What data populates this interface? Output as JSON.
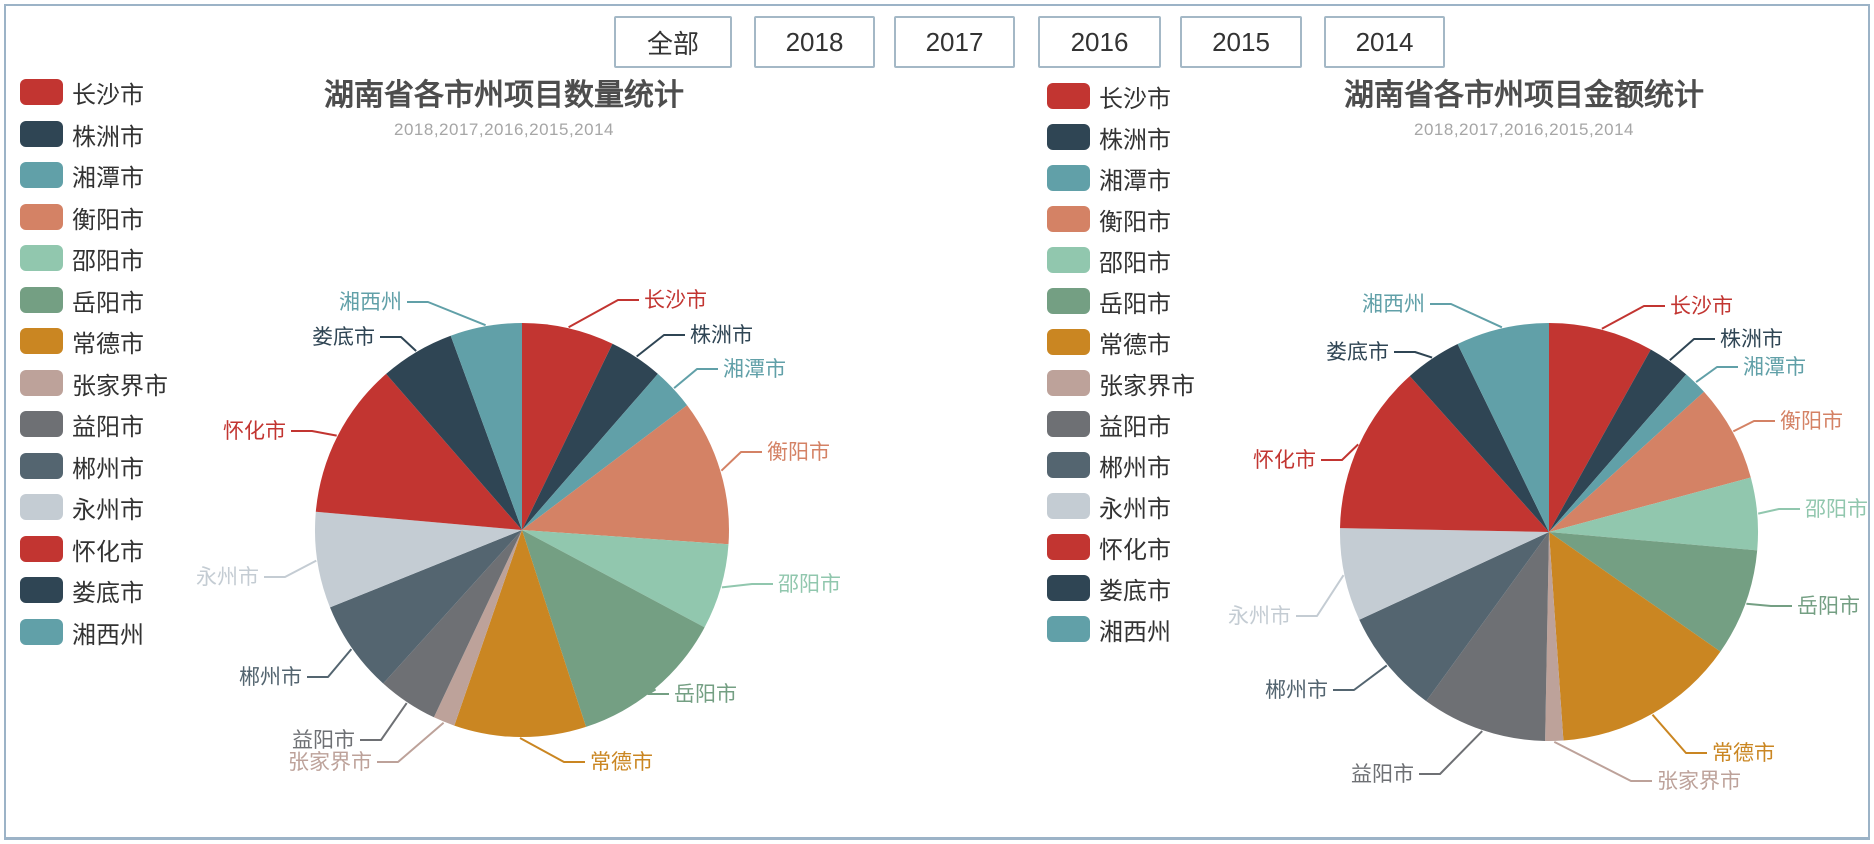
{
  "page": {
    "background": "#ffffff",
    "border_color": "#9cb3c7"
  },
  "filter_bar": {
    "buttons": [
      {
        "label": "全部"
      },
      {
        "label": "2018"
      },
      {
        "label": "2017"
      },
      {
        "label": "2016"
      },
      {
        "label": "2015"
      },
      {
        "label": "2014"
      }
    ]
  },
  "chart_data": [
    {
      "type": "pie",
      "title": "湖南省各市州项目数量统计",
      "subtitle": "2018,2017,2016,2015,2014",
      "legend_position": "left",
      "label_style": "outside labels with leader lines, label text colored like slice",
      "values_unit": "percent, estimated from slice angles (no numbers shown on chart)",
      "items": [
        {
          "name": "长沙市",
          "color": "#c23531",
          "value": 7.2
        },
        {
          "name": "株洲市",
          "color": "#2f4554",
          "value": 4.2
        },
        {
          "name": "湘潭市",
          "color": "#61a0a8",
          "value": 3.3
        },
        {
          "name": "衡阳市",
          "color": "#d48265",
          "value": 11.4
        },
        {
          "name": "邵阳市",
          "color": "#91c7ae",
          "value": 6.7
        },
        {
          "name": "岳阳市",
          "color": "#749f83",
          "value": 12.2
        },
        {
          "name": "常德市",
          "color": "#ca8622",
          "value": 10.3
        },
        {
          "name": "张家界市",
          "color": "#bda29a",
          "value": 1.7
        },
        {
          "name": "益阳市",
          "color": "#6e7074",
          "value": 4.7
        },
        {
          "name": "郴州市",
          "color": "#546570",
          "value": 7.2
        },
        {
          "name": "永州市",
          "color": "#c4ccd3",
          "value": 7.5
        },
        {
          "name": "怀化市",
          "color": "#c23531",
          "value": 12.2
        },
        {
          "name": "娄底市",
          "color": "#2f4554",
          "value": 5.8
        },
        {
          "name": "湘西州",
          "color": "#61a0a8",
          "value": 5.6
        }
      ]
    },
    {
      "type": "pie",
      "title": "湖南省各市州项目金额统计",
      "subtitle": "2018,2017,2016,2015,2014",
      "legend_position": "left",
      "label_style": "outside labels with leader lines, label text colored like slice",
      "values_unit": "percent, estimated from slice angles (no numbers shown on chart)",
      "items": [
        {
          "name": "长沙市",
          "color": "#c23531",
          "value": 8.1
        },
        {
          "name": "株洲市",
          "color": "#2f4554",
          "value": 3.3
        },
        {
          "name": "湘潭市",
          "color": "#61a0a8",
          "value": 1.9
        },
        {
          "name": "衡阳市",
          "color": "#d48265",
          "value": 7.5
        },
        {
          "name": "邵阳市",
          "color": "#91c7ae",
          "value": 5.6
        },
        {
          "name": "岳阳市",
          "color": "#749f83",
          "value": 8.3
        },
        {
          "name": "常德市",
          "color": "#ca8622",
          "value": 14.2
        },
        {
          "name": "张家界市",
          "color": "#bda29a",
          "value": 1.4
        },
        {
          "name": "益阳市",
          "color": "#6e7074",
          "value": 9.7
        },
        {
          "name": "郴州市",
          "color": "#546570",
          "value": 8.1
        },
        {
          "name": "永州市",
          "color": "#c4ccd3",
          "value": 7.2
        },
        {
          "name": "怀化市",
          "color": "#c23531",
          "value": 13.1
        },
        {
          "name": "娄底市",
          "color": "#2f4554",
          "value": 4.4
        },
        {
          "name": "湘西州",
          "color": "#61a0a8",
          "value": 7.2
        }
      ]
    }
  ]
}
